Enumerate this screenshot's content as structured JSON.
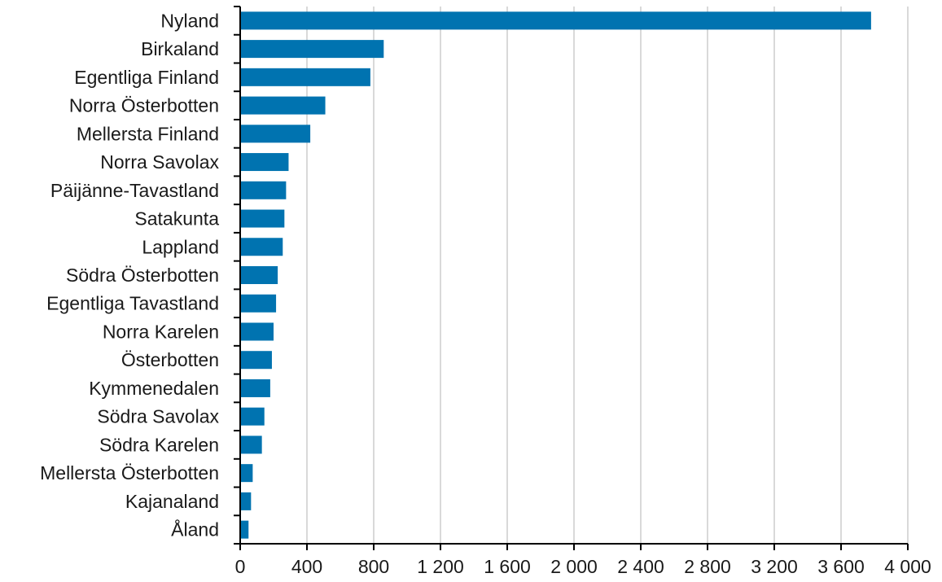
{
  "chart_data": {
    "type": "bar",
    "orientation": "horizontal",
    "categories": [
      "Nyland",
      "Birkaland",
      "Egentliga Finland",
      "Norra Österbotten",
      "Mellersta Finland",
      "Norra Savolax",
      "Päijänne-Tavastland",
      "Satakunta",
      "Lappland",
      "Södra Österbotten",
      "Egentliga Tavastland",
      "Norra Karelen",
      "Österbotten",
      "Kymmenedalen",
      "Södra Savolax",
      "Södra Karelen",
      "Mellersta Österbotten",
      "Kajanaland",
      "Åland"
    ],
    "values": [
      3780,
      860,
      780,
      510,
      420,
      290,
      275,
      265,
      255,
      225,
      215,
      200,
      190,
      180,
      145,
      130,
      75,
      65,
      50
    ],
    "xlim": [
      0,
      4000
    ],
    "x_ticks": [
      "0",
      "400",
      "800",
      "1 200",
      "1 600",
      "2 000",
      "2 400",
      "2 800",
      "3 200",
      "3 600",
      "4 000"
    ],
    "title": "",
    "xlabel": "",
    "ylabel": "",
    "grid": "vertical",
    "legend": "none",
    "colors": {
      "bar": "#0073b0",
      "grid": "#d9d9d9",
      "axis": "#000000",
      "text": "#1a1a1a"
    }
  }
}
